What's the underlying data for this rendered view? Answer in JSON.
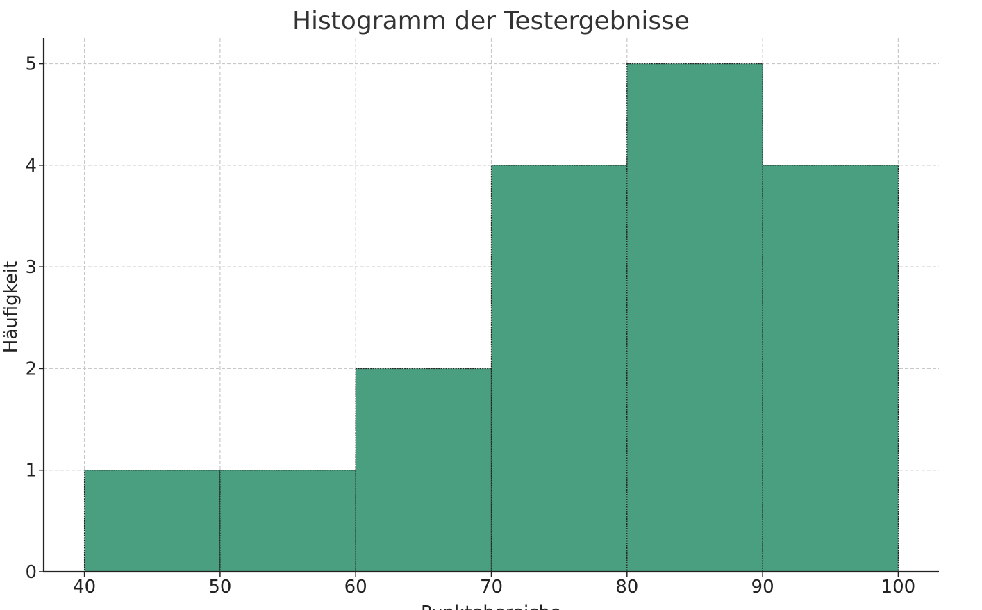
{
  "chart_data": {
    "type": "bar",
    "title": "Histogramm der Testergebnisse",
    "xlabel": "Punktebereiche",
    "ylabel": "Häufigkeit",
    "bins": [
      {
        "from": 40,
        "to": 50,
        "count": 1
      },
      {
        "from": 50,
        "to": 60,
        "count": 1
      },
      {
        "from": 60,
        "to": 70,
        "count": 2
      },
      {
        "from": 70,
        "to": 80,
        "count": 4
      },
      {
        "from": 80,
        "to": 90,
        "count": 5
      },
      {
        "from": 90,
        "to": 100,
        "count": 4
      }
    ],
    "xlim": [
      37,
      103
    ],
    "ylim": [
      0,
      5.25
    ],
    "xticks": [
      40,
      50,
      60,
      70,
      80,
      90,
      100
    ],
    "yticks": [
      0,
      1,
      2,
      3,
      4,
      5
    ],
    "grid": true,
    "bar_color": "#4a9f80",
    "edge_color": "#222222"
  }
}
